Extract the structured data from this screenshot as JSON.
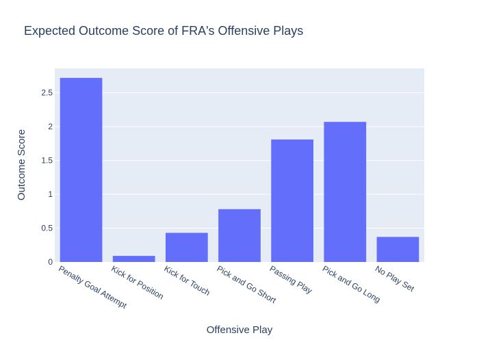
{
  "chart_data": {
    "type": "bar",
    "title": "Expected Outcome Score of FRA's Offensive Plays",
    "xlabel": "Offensive Play",
    "ylabel": "Outcome Score",
    "categories": [
      "Penalty Goal Attempt",
      "Kick for Position",
      "Kick for Touch",
      "Pick and Go Short",
      "Passing Play",
      "Pick and Go Long",
      "No Play Set"
    ],
    "values": [
      2.72,
      0.09,
      0.43,
      0.78,
      1.81,
      2.07,
      0.37
    ],
    "ylim": [
      0,
      2.86
    ],
    "yticks": [
      0,
      0.5,
      1,
      1.5,
      2,
      2.5
    ],
    "ytick_labels": [
      "0",
      "0.5",
      "1",
      "1.5",
      "2",
      "2.5"
    ],
    "grid": true,
    "colors": {
      "bar": "#636efa",
      "plot_bg": "#e5ecf6",
      "grid": "#ffffff",
      "text": "#2a3f5f"
    }
  }
}
